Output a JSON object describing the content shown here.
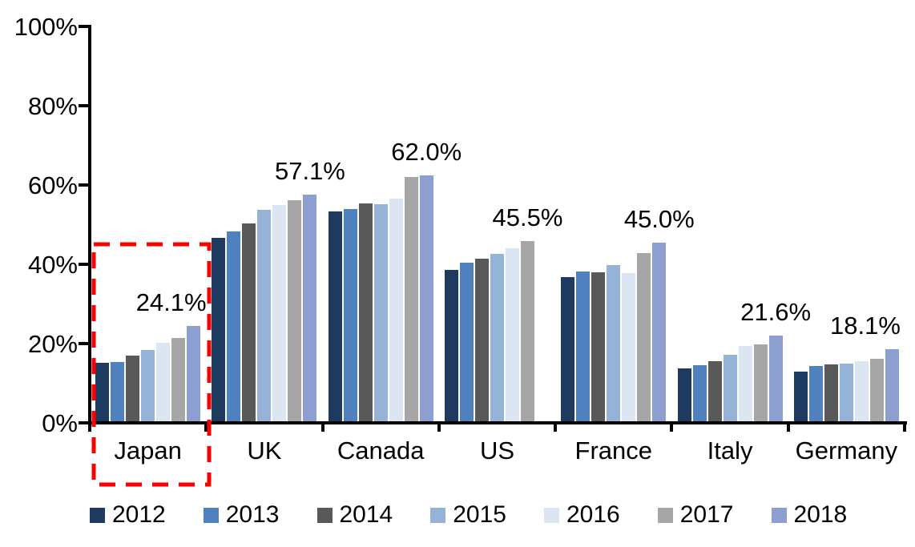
{
  "chart_data": {
    "type": "bar",
    "title": "",
    "xlabel": "",
    "ylabel": "",
    "categories": [
      "Japan",
      "UK",
      "Canada",
      "US",
      "France",
      "Italy",
      "Germany"
    ],
    "series": [
      {
        "name": "2012",
        "color": "#1F3A5F",
        "values": [
          14.8,
          46.3,
          53.0,
          38.2,
          36.4,
          13.3,
          12.5
        ]
      },
      {
        "name": "2013",
        "color": "#4E81BD",
        "values": [
          15.0,
          47.8,
          53.5,
          40.0,
          37.7,
          14.1,
          13.9
        ]
      },
      {
        "name": "2014",
        "color": "#595959",
        "values": [
          16.5,
          50.0,
          55.0,
          41.0,
          37.6,
          15.2,
          14.3
        ]
      },
      {
        "name": "2015",
        "color": "#95B3D7",
        "values": [
          18.0,
          53.3,
          54.7,
          42.2,
          39.3,
          16.8,
          14.6
        ]
      },
      {
        "name": "2016",
        "color": "#DCE6F2",
        "values": [
          19.8,
          54.5,
          56.2,
          43.6,
          37.3,
          19.0,
          15.2
        ]
      },
      {
        "name": "2017",
        "color": "#A6A6A6",
        "values": [
          21.0,
          55.7,
          61.7,
          45.5,
          42.4,
          19.3,
          15.8
        ]
      },
      {
        "name": "2018",
        "color": "#8C9FD0",
        "values": [
          24.1,
          57.1,
          62.0,
          null,
          45.0,
          21.6,
          18.1
        ]
      }
    ],
    "data_labels": [
      {
        "category": "Japan",
        "text": "24.1%"
      },
      {
        "category": "UK",
        "text": "57.1%"
      },
      {
        "category": "Canada",
        "text": "62.0%"
      },
      {
        "category": "US",
        "text": "45.5%"
      },
      {
        "category": "France",
        "text": "45.0%"
      },
      {
        "category": "Italy",
        "text": "21.6%"
      },
      {
        "category": "Germany",
        "text": "18.1%"
      }
    ],
    "y_axis": {
      "min": 0,
      "max": 100,
      "step": 20,
      "tick_labels": [
        "0%",
        "20%",
        "40%",
        "60%",
        "80%",
        "100%"
      ]
    },
    "legend": [
      "2012",
      "2013",
      "2014",
      "2015",
      "2016",
      "2017",
      "2018"
    ],
    "legend_position": "bottom",
    "grid": false,
    "highlight": {
      "shape": "dashed-rectangle",
      "color": "#FF0000",
      "around_category": "Japan"
    }
  }
}
